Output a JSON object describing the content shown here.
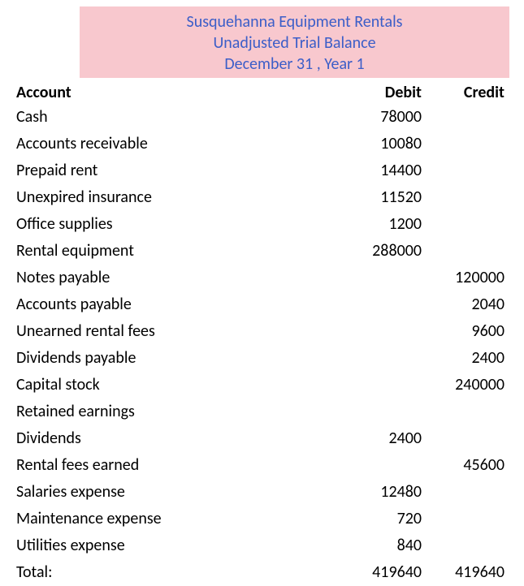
{
  "header": {
    "company": "Susquehanna Equipment Rentals",
    "report": "Unadjusted Trial Balance",
    "date": "December 31 , Year 1",
    "bg_color": "#f8c8ce",
    "text_color": "#3c5ec8",
    "fontsize": 20
  },
  "columns": {
    "account": "Account",
    "debit": "Debit",
    "credit": "Credit"
  },
  "rows": [
    {
      "account": "Cash",
      "debit": "78000",
      "credit": ""
    },
    {
      "account": "Accounts receivable",
      "debit": "10080",
      "credit": ""
    },
    {
      "account": "Prepaid rent",
      "debit": "14400",
      "credit": ""
    },
    {
      "account": "Unexpired insurance",
      "debit": "11520",
      "credit": ""
    },
    {
      "account": "Office supplies",
      "debit": "1200",
      "credit": ""
    },
    {
      "account": "Rental equipment",
      "debit": "288000",
      "credit": ""
    },
    {
      "account": "Notes payable",
      "debit": "",
      "credit": "120000"
    },
    {
      "account": "Accounts payable",
      "debit": "",
      "credit": "2040"
    },
    {
      "account": "Unearned rental fees",
      "debit": "",
      "credit": "9600"
    },
    {
      "account": "Dividends payable",
      "debit": "",
      "credit": "2400"
    },
    {
      "account": "Capital stock",
      "debit": "",
      "credit": "240000"
    },
    {
      "account": "Retained earnings",
      "debit": "",
      "credit": ""
    },
    {
      "account": "Dividends",
      "debit": "2400",
      "credit": ""
    },
    {
      "account": "Rental fees earned",
      "debit": "",
      "credit": "45600"
    },
    {
      "account": "Salaries expense",
      "debit": "12480",
      "credit": ""
    },
    {
      "account": "Maintenance expense",
      "debit": "720",
      "credit": ""
    },
    {
      "account": "Utilities expense",
      "debit": "840",
      "credit": ""
    }
  ],
  "total": {
    "label": "Total:",
    "debit": "419640",
    "credit": "419640"
  },
  "style": {
    "body_fontsize": 20,
    "text_color": "#000000",
    "background_color": "#ffffff",
    "debit_col_width": 90,
    "credit_col_width": 90
  }
}
